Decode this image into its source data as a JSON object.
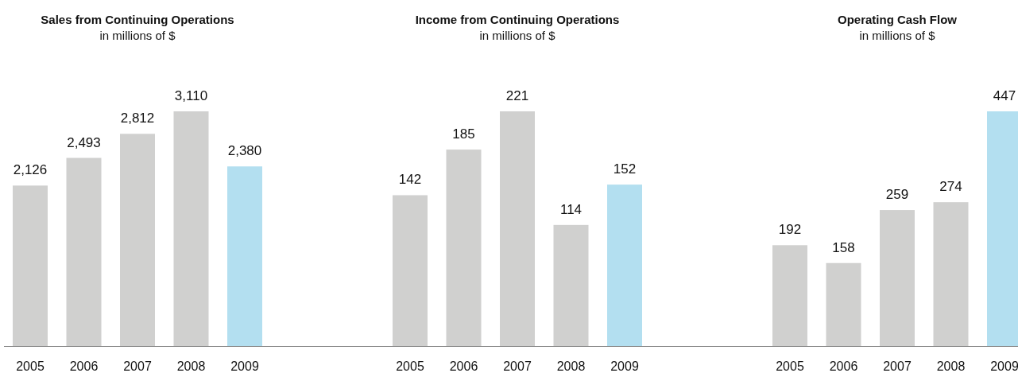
{
  "chart_data": [
    {
      "type": "bar",
      "title": "Sales from Continuing Operations",
      "subtitle": "in millions of $",
      "categories": [
        "2005",
        "2006",
        "2007",
        "2008",
        "2009"
      ],
      "values": [
        2126,
        2493,
        2812,
        3110,
        2380
      ],
      "colors": [
        "#d0d0cf",
        "#d0d0cf",
        "#d0d0cf",
        "#d0d0cf",
        "#b3dff0"
      ],
      "data_labels": true,
      "value_labels": [
        "2,126",
        "2,493",
        "2,812",
        "3,110",
        "2,380"
      ]
    },
    {
      "type": "bar",
      "title": "Income from Continuing Operations",
      "subtitle": "in millions of $",
      "categories": [
        "2005",
        "2006",
        "2007",
        "2008",
        "2009"
      ],
      "values": [
        142,
        185,
        221,
        114,
        152
      ],
      "colors": [
        "#d0d0cf",
        "#d0d0cf",
        "#d0d0cf",
        "#d0d0cf",
        "#b3dff0"
      ],
      "data_labels": true
    },
    {
      "type": "bar",
      "title": "Operating Cash Flow",
      "subtitle": "in millions of $",
      "categories": [
        "2005",
        "2006",
        "2007",
        "2008",
        "2009"
      ],
      "values": [
        192,
        158,
        259,
        274,
        447
      ],
      "colors": [
        "#d0d0cf",
        "#d0d0cf",
        "#d0d0cf",
        "#d0d0cf",
        "#b3dff0"
      ],
      "data_labels": true
    }
  ]
}
